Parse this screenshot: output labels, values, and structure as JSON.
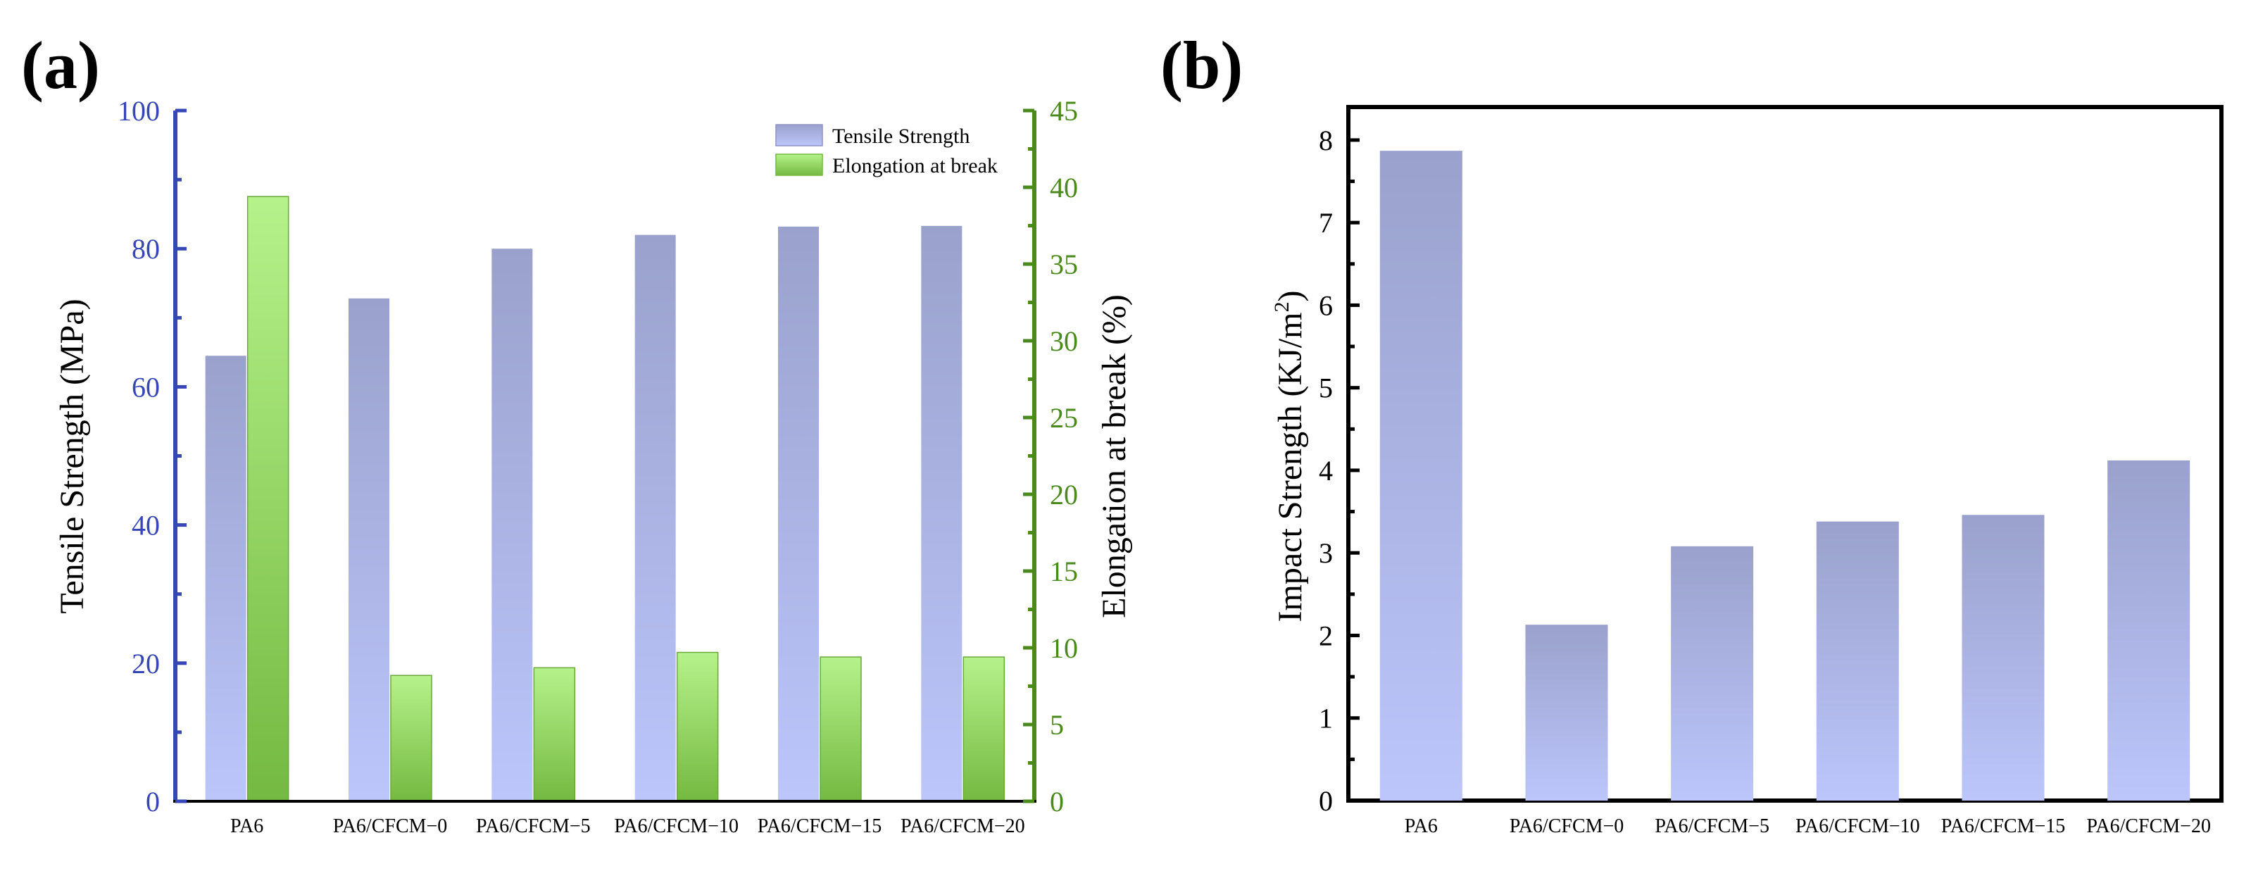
{
  "colors": {
    "blue_axis": "#3646b4",
    "green_axis": "#4a8a1c",
    "black": "#000000",
    "blue_bar_top": "#9aa1cc",
    "blue_bar_bottom": "#bcc6fb",
    "green_bar_top": "#b6f28b",
    "green_bar_bottom": "#74b941"
  },
  "chart_data": [
    {
      "panel_label": "(a)",
      "type": "bar",
      "categories": [
        "PA6",
        "PA6/CFCM−0",
        "PA6/CFCM−5",
        "PA6/CFCM−10",
        "PA6/CFCM−15",
        "PA6/CFCM−20"
      ],
      "series": [
        {
          "name": "Tensile Strength",
          "axis": "left",
          "values": [
            64.5,
            72.8,
            80.0,
            82.0,
            83.2,
            83.3
          ]
        },
        {
          "name": "Elongation at break",
          "axis": "right",
          "values": [
            39.4,
            8.2,
            8.7,
            9.7,
            9.4,
            9.4
          ]
        }
      ],
      "ylabel": "Tensile Strength (MPa)",
      "ylim": [
        0,
        100
      ],
      "yticks": [
        "0",
        "20",
        "40",
        "60",
        "80",
        "100"
      ],
      "y2label": "Elongation at break (%)",
      "y2lim": [
        0,
        45
      ],
      "y2ticks": [
        "0",
        "5",
        "10",
        "15",
        "20",
        "25",
        "30",
        "35",
        "40",
        "45"
      ],
      "legend_position": "top-right"
    },
    {
      "panel_label": "(b)",
      "type": "bar",
      "categories": [
        "PA6",
        "PA6/CFCM−0",
        "PA6/CFCM−5",
        "PA6/CFCM−10",
        "PA6/CFCM−15",
        "PA6/CFCM−20"
      ],
      "series": [
        {
          "name": "Impact Strength",
          "values": [
            7.87,
            2.13,
            3.08,
            3.38,
            3.46,
            4.12
          ]
        }
      ],
      "ylabel_main": "Impact Strength (KJ/m",
      "ylabel_sup": "2",
      "ylabel_end": ")",
      "ylim": [
        0,
        8.4
      ],
      "yticks": [
        "0",
        "1",
        "2",
        "3",
        "4",
        "5",
        "6",
        "7",
        "8"
      ]
    }
  ]
}
